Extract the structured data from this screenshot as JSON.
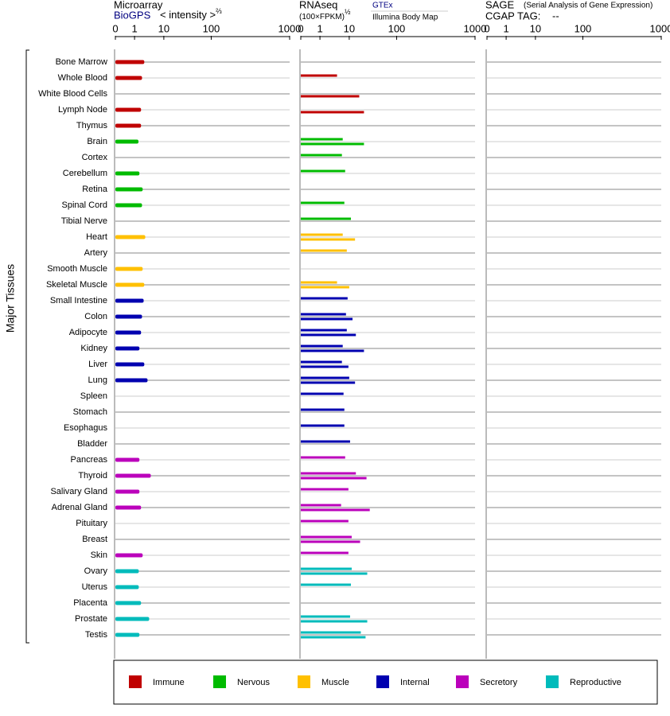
{
  "y_axis_label": "Major Tissues",
  "groups": [
    {
      "name": "Immune",
      "color": "#c00000",
      "categories": [
        "Bone Marrow",
        "Whole Blood",
        "White Blood Cells",
        "Lymph Node",
        "Thymus"
      ]
    },
    {
      "name": "Nervous",
      "color": "#00bb00",
      "categories": [
        "Brain",
        "Cortex",
        "Cerebellum",
        "Retina",
        "Spinal Cord",
        "Tibial Nerve"
      ]
    },
    {
      "name": "Muscle",
      "color": "#ffc000",
      "categories": [
        "Heart",
        "Artery",
        "Smooth Muscle",
        "Skeletal Muscle"
      ]
    },
    {
      "name": "Internal",
      "color": "#0000b0",
      "categories": [
        "Small Intestine",
        "Colon",
        "Adipocyte",
        "Kidney",
        "Liver",
        "Lung",
        "Spleen",
        "Stomach",
        "Esophagus",
        "Bladder"
      ]
    },
    {
      "name": "Secretory",
      "color": "#bb00bb",
      "categories": [
        "Pancreas",
        "Thyroid",
        "Salivary Gland",
        "Adrenal Gland",
        "Pituitary",
        "Breast",
        "Skin"
      ]
    },
    {
      "name": "Reproductive",
      "color": "#00bbbb",
      "categories": [
        "Ovary",
        "Uterus",
        "Placenta",
        "Prostate",
        "Testis"
      ]
    }
  ],
  "chart_data": [
    {
      "type": "bar",
      "title": "Microarray",
      "x_label": "< intensity >",
      "x_label_exponent": "⅔",
      "xlim": [
        0,
        1000
      ],
      "xticks": [
        0,
        1,
        10,
        100,
        1000
      ],
      "series": [
        {
          "name": "BioGPS",
          "color": "#000080",
          "values": [
            4,
            3.3,
            null,
            3,
            3,
            2.2,
            null,
            2.5,
            3.5,
            3.3,
            null,
            4.3,
            null,
            3.5,
            4,
            3.8,
            3.3,
            3,
            2.5,
            4,
            5,
            null,
            null,
            null,
            null,
            2.5,
            6,
            2.5,
            3,
            null,
            null,
            3.5,
            2.3,
            2.3,
            3,
            5.5,
            2.5
          ]
        }
      ]
    },
    {
      "type": "bar",
      "title": "RNAseq",
      "x_label": "(100×FPKM)",
      "x_label_exponent": "½",
      "xlim": [
        0,
        1000
      ],
      "xticks": [
        0,
        1,
        10,
        100,
        1000
      ],
      "series": [
        {
          "name": "GTEx",
          "color": "#000080",
          "values": [
            null,
            6.25,
            null,
            null,
            null,
            8,
            7.75,
            8.75,
            null,
            8.5,
            13.2,
            8,
            9.25,
            null,
            6.25,
            9.5,
            9,
            9.25,
            8,
            7.75,
            10,
            8.25,
            8.5,
            8.5,
            11.6,
            8.75,
            22.6,
            9.75,
            7.5,
            9.75,
            14.7,
            9.75,
            14.7,
            13.2,
            null,
            11.6,
            32
          ]
        },
        {
          "name": "Illumina Body Map",
          "color": "#000000",
          "values": [
            null,
            null,
            29,
            38,
            null,
            38,
            null,
            null,
            null,
            null,
            null,
            21,
            null,
            null,
            10,
            null,
            16.3,
            22.6,
            38,
            9.75,
            21,
            null,
            null,
            null,
            null,
            null,
            42.8,
            null,
            49,
            null,
            30.6,
            null,
            44.2,
            null,
            null,
            44.2,
            41
          ]
        }
      ]
    },
    {
      "type": "empty",
      "title": "SAGE",
      "subtitle": "(Serial Analysis of Gene Expression)",
      "cgap_tag_label": "CGAP TAG:",
      "cgap_tag": "--",
      "xlim": [
        0,
        1000
      ],
      "xticks": [
        0,
        1,
        10,
        100,
        1000
      ]
    }
  ]
}
